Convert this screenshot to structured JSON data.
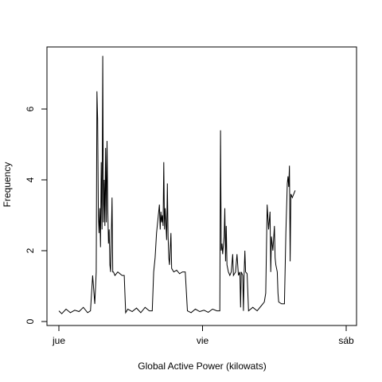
{
  "chart_data": {
    "type": "line",
    "title": "",
    "xlabel": "Global Active Power (kilowats)",
    "ylabel": "Frequency",
    "x_ticks": [
      "jue",
      "vie",
      "sáb"
    ],
    "x_range": [
      0,
      2
    ],
    "ylim": [
      0,
      7.6
    ],
    "y_ticks": [
      0,
      2,
      4,
      6
    ],
    "grid": false,
    "legend": "none",
    "series": [
      {
        "color": "#000000",
        "points": [
          [
            0.0,
            0.3
          ],
          [
            0.02,
            0.22
          ],
          [
            0.05,
            0.35
          ],
          [
            0.08,
            0.25
          ],
          [
            0.11,
            0.32
          ],
          [
            0.14,
            0.28
          ],
          [
            0.17,
            0.4
          ],
          [
            0.2,
            0.25
          ],
          [
            0.22,
            0.3
          ],
          [
            0.235,
            1.3
          ],
          [
            0.25,
            0.5
          ],
          [
            0.26,
            1.4
          ],
          [
            0.265,
            6.5
          ],
          [
            0.27,
            5.7
          ],
          [
            0.275,
            3.0
          ],
          [
            0.28,
            2.5
          ],
          [
            0.285,
            3.2
          ],
          [
            0.29,
            2.1
          ],
          [
            0.295,
            4.5
          ],
          [
            0.3,
            2.6
          ],
          [
            0.305,
            7.5
          ],
          [
            0.31,
            2.8
          ],
          [
            0.315,
            4.0
          ],
          [
            0.32,
            2.7
          ],
          [
            0.325,
            4.9
          ],
          [
            0.33,
            2.8
          ],
          [
            0.335,
            5.1
          ],
          [
            0.34,
            3.2
          ],
          [
            0.345,
            2.2
          ],
          [
            0.35,
            2.6
          ],
          [
            0.355,
            1.6
          ],
          [
            0.36,
            1.4
          ],
          [
            0.37,
            3.5
          ],
          [
            0.375,
            1.4
          ],
          [
            0.38,
            1.4
          ],
          [
            0.39,
            1.3
          ],
          [
            0.41,
            1.4
          ],
          [
            0.44,
            1.3
          ],
          [
            0.455,
            1.3
          ],
          [
            0.465,
            0.25
          ],
          [
            0.48,
            0.35
          ],
          [
            0.51,
            0.28
          ],
          [
            0.54,
            0.38
          ],
          [
            0.57,
            0.25
          ],
          [
            0.6,
            0.4
          ],
          [
            0.63,
            0.3
          ],
          [
            0.65,
            0.3
          ],
          [
            0.66,
            1.4
          ],
          [
            0.67,
            1.8
          ],
          [
            0.68,
            2.5
          ],
          [
            0.69,
            2.9
          ],
          [
            0.7,
            3.3
          ],
          [
            0.705,
            2.6
          ],
          [
            0.71,
            3.1
          ],
          [
            0.715,
            2.8
          ],
          [
            0.72,
            3.0
          ],
          [
            0.725,
            2.7
          ],
          [
            0.73,
            4.5
          ],
          [
            0.735,
            2.6
          ],
          [
            0.74,
            3.2
          ],
          [
            0.75,
            2.3
          ],
          [
            0.755,
            3.9
          ],
          [
            0.76,
            2.4
          ],
          [
            0.765,
            1.8
          ],
          [
            0.77,
            1.6
          ],
          [
            0.78,
            2.5
          ],
          [
            0.785,
            1.5
          ],
          [
            0.8,
            1.4
          ],
          [
            0.82,
            1.45
          ],
          [
            0.84,
            1.35
          ],
          [
            0.86,
            1.4
          ],
          [
            0.88,
            1.4
          ],
          [
            0.895,
            0.3
          ],
          [
            0.92,
            0.25
          ],
          [
            0.95,
            0.35
          ],
          [
            0.98,
            0.28
          ],
          [
            1.01,
            0.32
          ],
          [
            1.04,
            0.26
          ],
          [
            1.07,
            0.35
          ],
          [
            1.1,
            0.3
          ],
          [
            1.12,
            0.3
          ],
          [
            1.125,
            5.4
          ],
          [
            1.13,
            2.0
          ],
          [
            1.135,
            2.2
          ],
          [
            1.14,
            1.9
          ],
          [
            1.15,
            2.4
          ],
          [
            1.155,
            3.2
          ],
          [
            1.16,
            1.7
          ],
          [
            1.165,
            2.7
          ],
          [
            1.17,
            1.6
          ],
          [
            1.18,
            1.4
          ],
          [
            1.19,
            1.3
          ],
          [
            1.2,
            1.4
          ],
          [
            1.21,
            1.9
          ],
          [
            1.215,
            1.3
          ],
          [
            1.23,
            1.4
          ],
          [
            1.24,
            1.9
          ],
          [
            1.25,
            1.3
          ],
          [
            1.26,
            1.4
          ],
          [
            1.265,
            0.4
          ],
          [
            1.27,
            1.4
          ],
          [
            1.28,
            1.3
          ],
          [
            1.285,
            0.3
          ],
          [
            1.29,
            1.4
          ],
          [
            1.295,
            2.0
          ],
          [
            1.3,
            1.4
          ],
          [
            1.31,
            1.35
          ],
          [
            1.32,
            0.3
          ],
          [
            1.35,
            0.4
          ],
          [
            1.38,
            0.3
          ],
          [
            1.41,
            0.45
          ],
          [
            1.43,
            0.55
          ],
          [
            1.44,
            0.8
          ],
          [
            1.45,
            3.3
          ],
          [
            1.46,
            2.6
          ],
          [
            1.47,
            3.1
          ],
          [
            1.475,
            1.4
          ],
          [
            1.48,
            2.4
          ],
          [
            1.49,
            2.0
          ],
          [
            1.5,
            2.7
          ],
          [
            1.505,
            1.8
          ],
          [
            1.51,
            1.6
          ],
          [
            1.52,
            1.4
          ],
          [
            1.525,
            0.8
          ],
          [
            1.53,
            0.55
          ],
          [
            1.55,
            0.5
          ],
          [
            1.57,
            0.5
          ],
          [
            1.58,
            2.5
          ],
          [
            1.59,
            3.9
          ],
          [
            1.595,
            4.1
          ],
          [
            1.6,
            3.8
          ],
          [
            1.605,
            4.4
          ],
          [
            1.61,
            1.7
          ],
          [
            1.615,
            3.6
          ],
          [
            1.625,
            3.5
          ],
          [
            1.635,
            3.6
          ],
          [
            1.645,
            3.7
          ]
        ]
      }
    ]
  }
}
